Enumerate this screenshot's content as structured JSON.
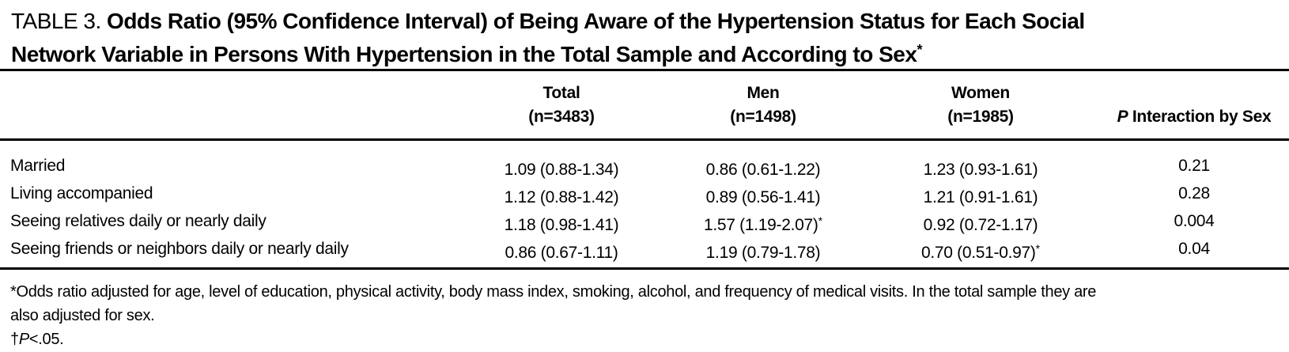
{
  "table": {
    "label": "TABLE 3.",
    "title_line1": "Odds Ratio (95% Confidence Interval) of Being Aware of the Hypertension Status for Each Social",
    "title_line2": "Network Variable in Persons With Hypertension in the Total Sample and According to Sex",
    "title_marker": "*",
    "header": {
      "variable_col": "",
      "total_line1": "Total",
      "total_line2": "(n=3483)",
      "men_line1": "Men",
      "men_line2": "(n=1498)",
      "women_line1": "Women",
      "women_line2": "(n=1985)",
      "p_italic": "P",
      "p_rest": " Interaction by Sex"
    },
    "rows": [
      {
        "label": "Married",
        "total": "1.09 (0.88-1.34)",
        "total_marker": "",
        "men": "0.86 (0.61-1.22)",
        "men_marker": "",
        "women": "1.23 (0.93-1.61)",
        "women_marker": "",
        "p": "0.21"
      },
      {
        "label": "Living accompanied",
        "total": "1.12 (0.88-1.42)",
        "total_marker": "",
        "men": "0.89 (0.56-1.41)",
        "men_marker": "",
        "women": "1.21 (0.91-1.61)",
        "women_marker": "",
        "p": "0.28"
      },
      {
        "label": "Seeing relatives daily or nearly daily",
        "total": "1.18 (0.98-1.41)",
        "total_marker": "",
        "men": "1.57 (1.19-2.07)",
        "men_marker": "*",
        "women": "0.92 (0.72-1.17)",
        "women_marker": "",
        "p": "0.004"
      },
      {
        "label": "Seeing friends or neighbors daily or nearly daily",
        "total": "0.86 (0.67-1.11)",
        "total_marker": "",
        "men": "1.19 (0.79-1.78)",
        "men_marker": "",
        "women": "0.70 (0.51-0.97)",
        "women_marker": "*",
        "p": "0.04"
      }
    ],
    "footnotes": {
      "line1": "*Odds ratio adjusted for age, level of education, physical activity, body mass index, smoking, alcohol, and frequency of medical visits. In the total sample they are",
      "line2": "also adjusted for sex.",
      "sig_marker": "†",
      "sig_p": "P",
      "sig_rest": "<.05."
    }
  }
}
